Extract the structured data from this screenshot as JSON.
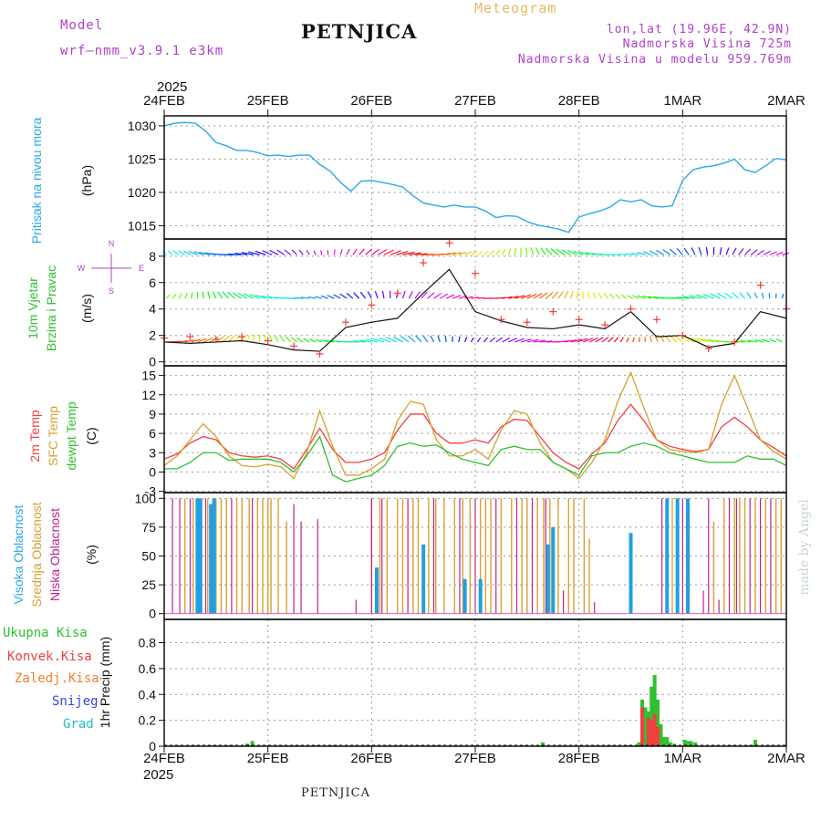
{
  "header": {
    "model_label": "Model",
    "model_name": "wrf–nmm_v3.9.1  e3km",
    "title": "PETNJICA",
    "product": "Meteogram",
    "lonlat": "lon,lat (19.96E, 42.9N)",
    "elevation": "Nadmorska Visina 725m",
    "model_elevation": "Nadmorska Visina u modelu 959.769m",
    "year_top": "2025",
    "year_bottom": "2025",
    "footer": "PETNJICA",
    "watermark": "made by Angel"
  },
  "colors": {
    "pressure": "#2aa8e8",
    "model_text": "#b040c8",
    "product_text": "#e8b860",
    "temp": "#f04040",
    "sfc_temp": "#d8a030",
    "dewpoint": "#30c030",
    "high_cloud": "#20a0e0",
    "mid_cloud": "#d8a030",
    "low_cloud": "#c02090",
    "total_precip": "#30c030",
    "conv_precip": "#f04040",
    "frozen_precip": "#f08030",
    "snow": "#4040e0",
    "hail": "#20c0c0"
  },
  "chart_data": [
    {
      "type": "line",
      "panel": "pressure",
      "ylabel_name": "Pritisak na nivou mora",
      "ylabel_unit": "(hPa)",
      "x_ticks": [
        "24FEB",
        "25FEB",
        "26FEB",
        "27FEB",
        "28FEB",
        "1MAR",
        "2MAR"
      ],
      "xlim_days": [
        0,
        6
      ],
      "ylim": [
        1013,
        1031.5
      ],
      "y_ticks": [
        1015,
        1020,
        1025,
        1030
      ],
      "series": [
        {
          "name": "Pritisak",
          "x": [
            0,
            0.1,
            0.2,
            0.3,
            0.4,
            0.5,
            0.6,
            0.7,
            0.8,
            0.9,
            1.0,
            1.1,
            1.2,
            1.3,
            1.4,
            1.5,
            1.6,
            1.7,
            1.8,
            1.9,
            2.0,
            2.1,
            2.2,
            2.3,
            2.4,
            2.5,
            2.6,
            2.7,
            2.8,
            2.9,
            3.0,
            3.1,
            3.2,
            3.3,
            3.4,
            3.5,
            3.6,
            3.7,
            3.8,
            3.9,
            4.0,
            4.1,
            4.2,
            4.3,
            4.4,
            4.5,
            4.6,
            4.7,
            4.8,
            4.9,
            5.0,
            5.1,
            5.2,
            5.3,
            5.4,
            5.5,
            5.6,
            5.7,
            5.8,
            5.9,
            6.0
          ],
          "values": [
            1030.0,
            1030.4,
            1030.5,
            1030.4,
            1029.2,
            1027.5,
            1027.0,
            1026.3,
            1026.3,
            1026.0,
            1025.5,
            1025.6,
            1025.4,
            1025.6,
            1025.6,
            1024.2,
            1023.2,
            1021.5,
            1020.2,
            1021.7,
            1021.8,
            1021.5,
            1021.2,
            1020.8,
            1019.5,
            1018.4,
            1018.1,
            1017.8,
            1018.1,
            1017.8,
            1017.8,
            1017.2,
            1016.2,
            1016.5,
            1016.4,
            1015.6,
            1015.1,
            1014.8,
            1014.5,
            1014.0,
            1016.3,
            1016.8,
            1017.2,
            1017.8,
            1018.9,
            1018.6,
            1018.9,
            1018.0,
            1017.8,
            1018.0,
            1021.8,
            1023.4,
            1023.8,
            1024.0,
            1024.4,
            1025.0,
            1023.4,
            1023.0,
            1024.0,
            1025.1,
            1024.9
          ]
        }
      ]
    },
    {
      "type": "line",
      "panel": "wind",
      "ylabel_name": "10m Vjetar",
      "ylabel_name2": "Brzina i Pravac",
      "ylabel_unit": "(m/s)",
      "compass": [
        "N",
        "W",
        "E",
        "S"
      ],
      "ylim": [
        -0.3,
        9.3
      ],
      "y_ticks": [
        0,
        2,
        4,
        6,
        8
      ],
      "series": [
        {
          "name": "Vjetar 10m",
          "x": [
            0,
            0.25,
            0.5,
            0.75,
            1.0,
            1.25,
            1.5,
            1.75,
            2.0,
            2.25,
            2.5,
            2.75,
            3.0,
            3.25,
            3.5,
            3.75,
            4.0,
            4.25,
            4.5,
            4.75,
            5.0,
            5.25,
            5.5,
            5.75,
            6.0
          ],
          "values": [
            1.5,
            1.4,
            1.5,
            1.6,
            1.3,
            0.9,
            0.8,
            2.6,
            3.0,
            3.3,
            5.2,
            7.0,
            3.8,
            3.1,
            2.6,
            2.5,
            2.8,
            2.5,
            3.8,
            1.9,
            2.0,
            1.1,
            1.4,
            3.8,
            3.3
          ]
        },
        {
          "name": "Udari vjetra",
          "x": [
            0,
            0.25,
            0.5,
            0.75,
            1.0,
            1.25,
            1.5,
            1.75,
            2.0,
            2.25,
            2.5,
            2.75,
            3.0,
            3.25,
            3.5,
            3.75,
            4.0,
            4.25,
            4.5,
            4.75,
            5.0,
            5.25,
            5.5,
            5.75,
            6.0
          ],
          "values": [
            1.8,
            1.9,
            1.7,
            1.9,
            1.6,
            1.2,
            0.6,
            3.0,
            4.3,
            5.2,
            7.5,
            9.0,
            6.7,
            3.2,
            3.0,
            3.8,
            3.2,
            2.8,
            4.0,
            3.2,
            2.0,
            1.0,
            1.5,
            5.8,
            4.0
          ]
        }
      ]
    },
    {
      "type": "line",
      "panel": "temperature",
      "ylabel_name": "2m Temp",
      "ylabel_name2": "SFC Temp",
      "ylabel_name3": "dewpt Temp",
      "ylabel_unit": "(C)",
      "ylim": [
        -3.2,
        16.5
      ],
      "y_ticks": [
        -3,
        0,
        3,
        6,
        9,
        12,
        15
      ],
      "series": [
        {
          "name": "2m Temp",
          "x": [
            0,
            0.125,
            0.25,
            0.375,
            0.5,
            0.625,
            0.75,
            0.875,
            1.0,
            1.125,
            1.25,
            1.375,
            1.5,
            1.625,
            1.75,
            1.875,
            2.0,
            2.125,
            2.25,
            2.375,
            2.5,
            2.625,
            2.75,
            2.875,
            3.0,
            3.125,
            3.25,
            3.375,
            3.5,
            3.625,
            3.75,
            3.875,
            4.0,
            4.125,
            4.25,
            4.375,
            4.5,
            4.625,
            4.75,
            4.875,
            5.0,
            5.125,
            5.25,
            5.375,
            5.5,
            5.625,
            5.75,
            5.875,
            6.0
          ],
          "values": [
            2.0,
            2.8,
            4.5,
            5.5,
            5.0,
            3.0,
            2.5,
            2.3,
            2.5,
            2.0,
            0.5,
            3.5,
            6.8,
            3.5,
            1.5,
            1.5,
            2.0,
            3.0,
            6.5,
            9.0,
            9.0,
            6.0,
            4.5,
            4.5,
            5.0,
            4.5,
            7.0,
            8.2,
            8.0,
            5.5,
            3.0,
            1.5,
            0.5,
            2.8,
            4.5,
            8.0,
            10.5,
            8.0,
            5.0,
            4.0,
            3.5,
            3.2,
            3.5,
            7.0,
            8.5,
            7.0,
            5.0,
            3.8,
            2.5
          ]
        },
        {
          "name": "SFC Temp",
          "x": [
            0,
            0.125,
            0.25,
            0.375,
            0.5,
            0.625,
            0.75,
            0.875,
            1.0,
            1.125,
            1.25,
            1.375,
            1.5,
            1.625,
            1.75,
            1.875,
            2.0,
            2.125,
            2.25,
            2.375,
            2.5,
            2.625,
            2.75,
            2.875,
            3.0,
            3.125,
            3.25,
            3.375,
            3.5,
            3.625,
            3.75,
            3.875,
            4.0,
            4.125,
            4.25,
            4.375,
            4.5,
            4.625,
            4.75,
            4.875,
            5.0,
            5.125,
            5.25,
            5.375,
            5.5,
            5.625,
            5.75,
            5.875,
            6.0
          ],
          "values": [
            1.0,
            2.5,
            5.0,
            7.5,
            5.5,
            2.5,
            1.0,
            0.8,
            1.2,
            0.8,
            -1.0,
            3.0,
            9.5,
            4.0,
            -0.5,
            -0.5,
            0.5,
            2.0,
            8.0,
            11.0,
            10.5,
            5.0,
            2.5,
            2.5,
            3.5,
            2.0,
            6.5,
            9.5,
            9.0,
            4.5,
            1.5,
            0.5,
            -1.0,
            1.5,
            5.0,
            11.0,
            15.5,
            10.0,
            5.0,
            3.5,
            3.2,
            3.0,
            3.5,
            10.5,
            15.0,
            10.0,
            5.0,
            3.2,
            2.0
          ]
        },
        {
          "name": "dewpt Temp",
          "x": [
            0,
            0.125,
            0.25,
            0.375,
            0.5,
            0.625,
            0.75,
            0.875,
            1.0,
            1.125,
            1.25,
            1.375,
            1.5,
            1.625,
            1.75,
            1.875,
            2.0,
            2.125,
            2.25,
            2.375,
            2.5,
            2.625,
            2.75,
            2.875,
            3.0,
            3.125,
            3.25,
            3.375,
            3.5,
            3.625,
            3.75,
            3.875,
            4.0,
            4.125,
            4.25,
            4.375,
            4.5,
            4.625,
            4.75,
            4.875,
            5.0,
            5.125,
            5.25,
            5.375,
            5.5,
            5.625,
            5.75,
            5.875,
            6.0
          ],
          "values": [
            0.5,
            0.5,
            1.5,
            3.0,
            3.0,
            1.8,
            2.0,
            2.0,
            2.0,
            1.5,
            0.0,
            2.5,
            5.5,
            -0.5,
            -1.5,
            -1.0,
            -0.5,
            1.0,
            4.0,
            4.5,
            4.0,
            4.2,
            3.0,
            2.0,
            1.5,
            1.0,
            3.5,
            4.0,
            3.5,
            3.5,
            1.5,
            0.5,
            -0.5,
            2.5,
            3.0,
            3.0,
            4.0,
            4.5,
            4.0,
            3.0,
            2.5,
            2.0,
            1.5,
            1.5,
            1.5,
            2.5,
            2.0,
            2.0,
            1.0
          ]
        }
      ]
    },
    {
      "type": "bar",
      "panel": "cloud",
      "ylabel_name": "Visoka Oblacnost",
      "ylabel_name2": "Srednja Oblacnost",
      "ylabel_name3": "Niska Oblacnost",
      "ylabel_unit": "(%)",
      "ylim": [
        -5,
        105
      ],
      "y_ticks": [
        0,
        25,
        50,
        75,
        100
      ],
      "series": [
        {
          "name": "Visoka Oblacnost",
          "x": [
            0.32,
            0.35,
            0.45,
            0.48,
            2.05,
            2.5,
            2.9,
            3.05,
            3.7,
            3.75,
            4.5,
            4.85,
            4.95,
            5.05
          ],
          "values": [
            100,
            100,
            95,
            100,
            40,
            60,
            30,
            30,
            60,
            75,
            70,
            100,
            100,
            100
          ]
        },
        {
          "name": "Srednja Oblacnost",
          "x": [
            0.2,
            0.28,
            0.36,
            0.42,
            0.5,
            0.55,
            0.6,
            0.7,
            0.75,
            0.82,
            0.9,
            0.95,
            1.0,
            1.03,
            1.1,
            1.18,
            2.0,
            2.08,
            2.15,
            2.25,
            2.3,
            2.4,
            2.45,
            2.55,
            2.62,
            2.7,
            2.8,
            2.88,
            2.95,
            3.05,
            3.1,
            3.15,
            3.25,
            3.35,
            3.45,
            3.5,
            3.6,
            3.66,
            3.72,
            3.8,
            3.9,
            3.95,
            4.05,
            4.1,
            4.85,
            4.9,
            4.95,
            5.3,
            5.4,
            5.5,
            5.55,
            5.6,
            5.7,
            5.8,
            5.9,
            5.95
          ],
          "values": [
            100,
            100,
            100,
            100,
            100,
            100,
            100,
            100,
            100,
            100,
            100,
            100,
            100,
            100,
            100,
            80,
            100,
            100,
            100,
            100,
            100,
            100,
            100,
            100,
            100,
            100,
            100,
            100,
            100,
            100,
            100,
            100,
            100,
            100,
            100,
            100,
            100,
            100,
            100,
            100,
            100,
            100,
            100,
            65,
            100,
            100,
            100,
            80,
            100,
            100,
            100,
            100,
            100,
            100,
            100,
            100
          ]
        },
        {
          "name": "Niska Oblacnost",
          "x": [
            0.08,
            0.15,
            0.25,
            0.4,
            0.65,
            0.85,
            1.25,
            1.32,
            1.48,
            1.85,
            2.0,
            2.1,
            2.35,
            2.6,
            2.85,
            3.0,
            3.2,
            3.4,
            3.55,
            3.68,
            3.85,
            4.15,
            4.8,
            4.85,
            5.0,
            5.2,
            5.25,
            5.35,
            5.45,
            5.52,
            5.65,
            5.75,
            5.85,
            6.0
          ],
          "values": [
            100,
            100,
            100,
            100,
            100,
            100,
            95,
            80,
            82,
            12,
            100,
            100,
            100,
            100,
            100,
            100,
            100,
            100,
            100,
            100,
            20,
            10,
            100,
            90,
            100,
            20,
            100,
            12,
            100,
            100,
            100,
            100,
            100,
            100
          ]
        }
      ]
    },
    {
      "type": "bar",
      "panel": "precipitation",
      "legend": [
        "Ukupna Kisa",
        "Konvek.Kisa",
        "Zaledj.Kisa",
        "Snijeg",
        "Grad"
      ],
      "ylabel_unit": "1hr Precip (mm)",
      "ylim": [
        0,
        0.98
      ],
      "y_ticks": [
        0.0,
        0.2,
        0.4,
        0.6,
        0.8
      ],
      "series": [
        {
          "name": "Ukupna Kisa",
          "x": [
            0.8,
            0.85,
            3.65,
            4.58,
            4.61,
            4.64,
            4.67,
            4.7,
            4.73,
            4.76,
            4.79,
            4.82,
            4.85,
            4.88,
            4.92,
            5.02,
            5.05,
            5.08,
            5.12,
            5.7
          ],
          "values": [
            0.02,
            0.04,
            0.03,
            0.03,
            0.36,
            0.3,
            0.27,
            0.46,
            0.55,
            0.36,
            0.17,
            0.07,
            0.07,
            0.03,
            0.02,
            0.05,
            0.04,
            0.04,
            0.03,
            0.05
          ]
        },
        {
          "name": "Konvek.Kisa",
          "x": [
            4.61,
            4.67,
            4.7,
            4.73,
            4.76
          ],
          "values": [
            0.3,
            0.22,
            0.2,
            0.25,
            0.15
          ]
        }
      ]
    }
  ]
}
